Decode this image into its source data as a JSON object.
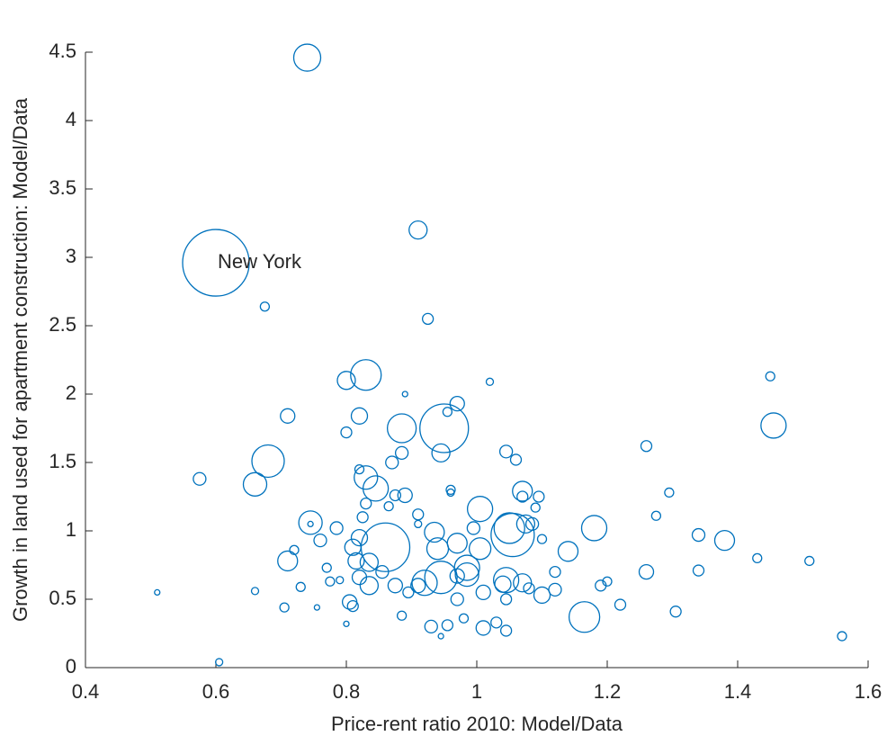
{
  "chart_data": {
    "type": "scatter",
    "x_label": "Price-rent ratio 2010: Model/Data",
    "y_label": "Growth in land used for apartment construction: Model/Data",
    "annotation": "New York",
    "color": "#0072bd",
    "xlim": [
      0.4,
      1.6
    ],
    "xticks": [
      0.4,
      0.6,
      0.8,
      1,
      1.2,
      1.4,
      1.6
    ],
    "ylim": [
      0,
      4.5
    ],
    "yticks": [
      0,
      0.5,
      1,
      1.5,
      2,
      2.5,
      3,
      3.5,
      4,
      4.5
    ],
    "x": [
      0.6,
      0.74,
      0.91,
      0.675,
      0.925,
      0.83,
      0.8,
      0.89,
      1.02,
      1.45,
      1.455,
      0.71,
      0.82,
      0.97,
      0.955,
      0.95,
      0.885,
      0.8,
      0.68,
      0.66,
      0.575,
      0.82,
      0.83,
      0.845,
      0.87,
      0.885,
      0.945,
      1.045,
      1.06,
      1.26,
      0.89,
      0.875,
      0.96,
      0.96,
      1.005,
      1.07,
      1.07,
      1.095,
      1.295,
      1.275,
      0.745,
      0.745,
      0.785,
      0.82,
      0.86,
      0.865,
      0.83,
      0.825,
      0.91,
      0.91,
      0.935,
      0.94,
      0.97,
      0.995,
      1.005,
      1.055,
      1.05,
      1.075,
      1.085,
      1.09,
      1.1,
      1.14,
      1.18,
      1.34,
      1.38,
      1.34,
      1.43,
      1.51,
      1.56,
      1.305,
      1.26,
      1.22,
      1.2,
      1.19,
      1.165,
      1.12,
      1.12,
      1.1,
      1.08,
      1.07,
      1.045,
      1.04,
      1.045,
      1.045,
      1.03,
      1.01,
      1.01,
      0.985,
      0.985,
      0.97,
      0.97,
      0.945,
      0.92,
      0.91,
      0.93,
      0.955,
      0.98,
      0.895,
      0.885,
      0.875,
      0.855,
      0.835,
      0.815,
      0.82,
      0.835,
      0.81,
      0.805,
      0.81,
      0.79,
      0.77,
      0.775,
      0.76,
      0.73,
      0.72,
      0.71,
      0.705,
      0.66,
      0.51,
      0.605,
      0.8,
      0.755,
      0.945
    ],
    "y": [
      2.96,
      4.46,
      3.2,
      2.64,
      2.55,
      2.14,
      2.1,
      2,
      2.09,
      2.13,
      1.77,
      1.84,
      1.84,
      1.93,
      1.87,
      1.75,
      1.75,
      1.72,
      1.51,
      1.34,
      1.38,
      1.45,
      1.39,
      1.31,
      1.5,
      1.57,
      1.57,
      1.58,
      1.52,
      1.62,
      1.26,
      1.26,
      1.3,
      1.28,
      1.16,
      1.29,
      1.25,
      1.25,
      1.28,
      1.11,
      1.06,
      1.05,
      1.02,
      0.95,
      0.88,
      1.18,
      1.2,
      1.1,
      1.12,
      1.05,
      0.99,
      0.87,
      0.91,
      1.02,
      0.87,
      0.97,
      1.02,
      1.05,
      1.05,
      1.17,
      0.94,
      0.85,
      1.02,
      0.97,
      0.93,
      0.71,
      0.8,
      0.78,
      0.23,
      0.41,
      0.7,
      0.46,
      0.63,
      0.6,
      0.37,
      0.7,
      0.57,
      0.53,
      0.58,
      0.62,
      0.64,
      0.61,
      0.5,
      0.27,
      0.33,
      0.55,
      0.29,
      0.73,
      0.68,
      0.67,
      0.5,
      0.66,
      0.62,
      0.6,
      0.3,
      0.31,
      0.36,
      0.55,
      0.38,
      0.6,
      0.7,
      0.77,
      0.78,
      0.66,
      0.6,
      0.88,
      0.48,
      0.45,
      0.64,
      0.73,
      0.63,
      0.93,
      0.59,
      0.86,
      0.78,
      0.44,
      0.56,
      0.55,
      0.04,
      0.32,
      0.44,
      0.23
    ],
    "sizes": [
      37,
      15,
      10,
      5,
      6,
      17,
      10,
      3,
      4,
      5,
      14,
      8,
      9,
      8,
      5,
      27,
      16,
      6,
      18,
      13,
      7,
      5,
      13,
      14,
      7,
      7,
      10,
      7,
      6,
      6,
      8,
      6,
      5,
      4,
      14,
      11,
      6,
      6,
      5,
      5,
      13,
      3,
      7,
      9,
      27,
      5,
      6,
      6,
      6,
      4,
      11,
      12,
      11,
      7,
      12,
      24,
      17,
      10,
      7,
      5,
      5,
      11,
      14,
      7,
      11,
      6,
      5,
      5,
      5,
      6,
      8,
      6,
      5,
      6,
      17,
      6,
      7,
      9,
      6,
      10,
      14,
      9,
      6,
      6,
      6,
      8,
      8,
      14,
      13,
      8,
      7,
      18,
      14,
      8,
      7,
      6,
      5,
      6,
      5,
      8,
      7,
      10,
      9,
      8,
      10,
      9,
      8,
      6,
      4,
      5,
      5,
      7,
      5,
      5,
      11,
      5,
      4,
      3,
      4,
      3,
      3,
      3
    ]
  }
}
